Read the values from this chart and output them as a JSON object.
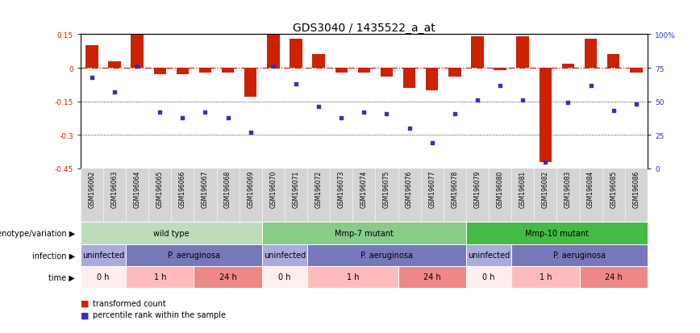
{
  "title": "GDS3040 / 1435522_a_at",
  "samples": [
    "GSM196062",
    "GSM196063",
    "GSM196064",
    "GSM196065",
    "GSM196066",
    "GSM196067",
    "GSM196068",
    "GSM196069",
    "GSM196070",
    "GSM196071",
    "GSM196072",
    "GSM196073",
    "GSM196074",
    "GSM196075",
    "GSM196076",
    "GSM196077",
    "GSM196078",
    "GSM196079",
    "GSM196080",
    "GSM196081",
    "GSM196082",
    "GSM196083",
    "GSM196084",
    "GSM196085",
    "GSM196086"
  ],
  "bar_values": [
    0.1,
    0.03,
    0.15,
    -0.03,
    -0.03,
    -0.02,
    -0.02,
    -0.13,
    0.15,
    0.13,
    0.06,
    -0.02,
    -0.02,
    -0.04,
    -0.09,
    -0.1,
    -0.04,
    0.14,
    -0.01,
    0.14,
    -0.42,
    0.02,
    0.13,
    0.06,
    -0.02
  ],
  "dot_pct": [
    68,
    57,
    76,
    42,
    38,
    42,
    38,
    27,
    76,
    63,
    46,
    38,
    42,
    41,
    30,
    19,
    41,
    51,
    62,
    51,
    5,
    49,
    62,
    43,
    48
  ],
  "ylim_left": [
    -0.45,
    0.15
  ],
  "ylim_right": [
    0,
    100
  ],
  "yticks_left": [
    -0.45,
    -0.3,
    -0.15,
    0.0,
    0.15
  ],
  "ytick_labels_left": [
    "-0.45",
    "-0.3",
    "-0.15",
    "0",
    "0.15"
  ],
  "yticks_right": [
    0,
    25,
    50,
    75,
    100
  ],
  "ytick_labels_right": [
    "0",
    "25",
    "50",
    "75",
    "100%"
  ],
  "bar_color": "#cc2200",
  "dot_color": "#3333bb",
  "hline_color": "#cc2200",
  "genotype_groups": [
    {
      "label": "wild type",
      "start": 0,
      "end": 8,
      "color": "#bbddbb"
    },
    {
      "label": "Mmp-7 mutant",
      "start": 8,
      "end": 17,
      "color": "#88cc88"
    },
    {
      "label": "Mmp-10 mutant",
      "start": 17,
      "end": 25,
      "color": "#44bb44"
    }
  ],
  "infection_groups": [
    {
      "label": "uninfected",
      "start": 0,
      "end": 2,
      "color": "#aaaadd"
    },
    {
      "label": "P. aeruginosa",
      "start": 2,
      "end": 8,
      "color": "#7777bb"
    },
    {
      "label": "uninfected",
      "start": 8,
      "end": 10,
      "color": "#aaaadd"
    },
    {
      "label": "P. aeruginosa",
      "start": 10,
      "end": 17,
      "color": "#7777bb"
    },
    {
      "label": "uninfected",
      "start": 17,
      "end": 19,
      "color": "#aaaadd"
    },
    {
      "label": "P. aeruginosa",
      "start": 19,
      "end": 25,
      "color": "#7777bb"
    }
  ],
  "time_groups": [
    {
      "label": "0 h",
      "start": 0,
      "end": 2,
      "color": "#ffeeee"
    },
    {
      "label": "1 h",
      "start": 2,
      "end": 5,
      "color": "#ffbbbb"
    },
    {
      "label": "24 h",
      "start": 5,
      "end": 8,
      "color": "#ee8888"
    },
    {
      "label": "0 h",
      "start": 8,
      "end": 10,
      "color": "#ffeeee"
    },
    {
      "label": "1 h",
      "start": 10,
      "end": 14,
      "color": "#ffbbbb"
    },
    {
      "label": "24 h",
      "start": 14,
      "end": 17,
      "color": "#ee8888"
    },
    {
      "label": "0 h",
      "start": 17,
      "end": 19,
      "color": "#ffeeee"
    },
    {
      "label": "1 h",
      "start": 19,
      "end": 22,
      "color": "#ffbbbb"
    },
    {
      "label": "24 h",
      "start": 22,
      "end": 25,
      "color": "#ee8888"
    }
  ],
  "row_labels": [
    "genotype/variation",
    "infection",
    "time"
  ],
  "legend_bar_label": "transformed count",
  "legend_dot_label": "percentile rank within the sample",
  "grid_dotted_values": [
    -0.15,
    -0.3
  ],
  "tick_fontsize": 6.5,
  "sample_fontsize": 5.5,
  "annot_fontsize": 7.0,
  "row_label_fontsize": 7.0,
  "title_fontsize": 10,
  "legend_fontsize": 7.0
}
